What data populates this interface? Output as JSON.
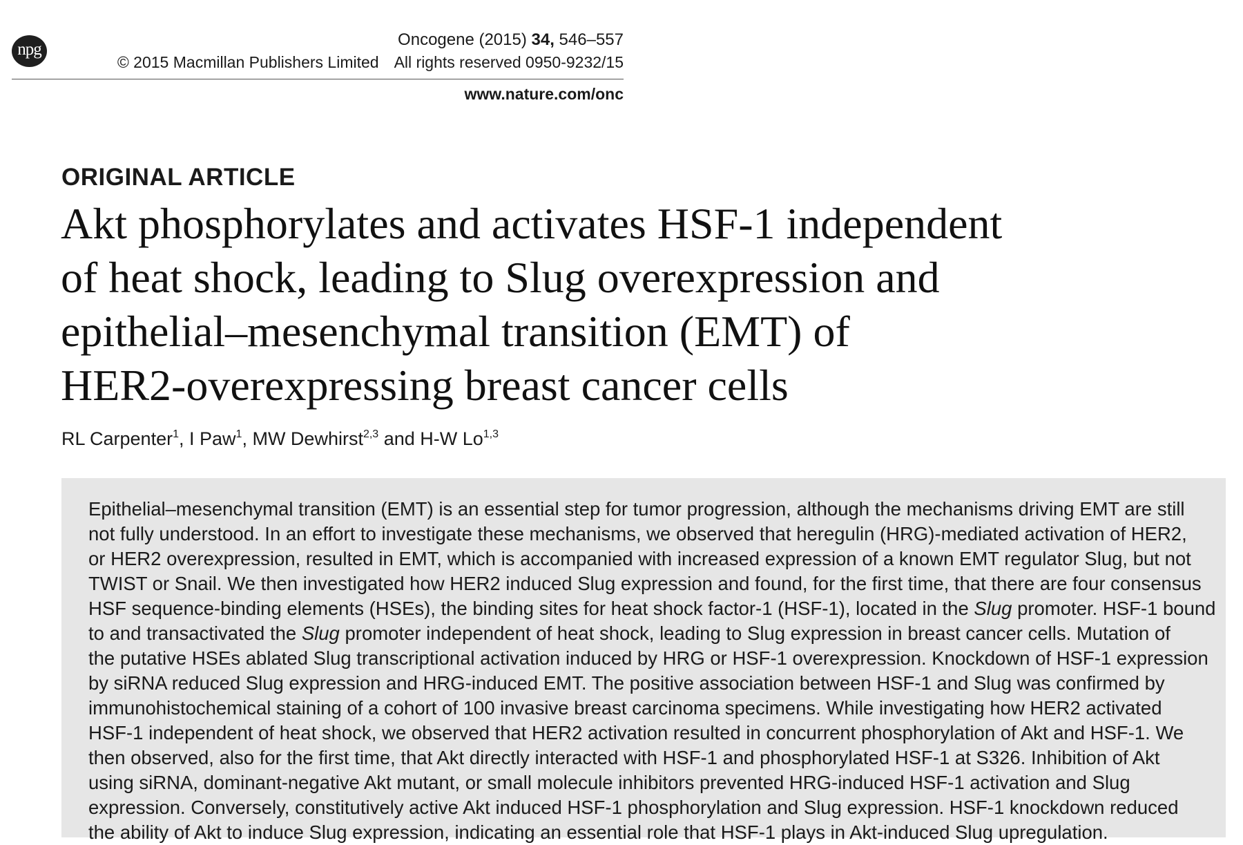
{
  "header": {
    "logo": "npg",
    "journal_name": "Oncogene (2015) ",
    "volume": "34,",
    "pages": " 546–557",
    "copyright": "© 2015 Macmillan Publishers Limited",
    "rights": "All rights reserved 0950-9232/15",
    "website": "www.nature.com/onc"
  },
  "article": {
    "type": "ORIGINAL ARTICLE",
    "title_lines": [
      "Akt phosphorylates and activates HSF-1 independent",
      "of heat shock, leading to Slug overexpression and",
      "epithelial–mesenchymal transition (EMT) of",
      "HER2-overexpressing breast cancer cells"
    ],
    "authors": [
      {
        "name": "RL Carpenter",
        "aff": "1",
        "sep": ", "
      },
      {
        "name": "I Paw",
        "aff": "1",
        "sep": ", "
      },
      {
        "name": "MW Dewhirst",
        "aff": "2,3",
        "sep": " and "
      },
      {
        "name": "H-W Lo",
        "aff": "1,3",
        "sep": ""
      }
    ]
  },
  "abstract": {
    "lines": [
      "Epithelial–mesenchymal transition (EMT) is an essential step for tumor progression, although the mechanisms driving EMT are still",
      "not fully understood. In an effort to investigate these mechanisms, we observed that heregulin (HRG)-mediated activation of HER2,",
      "or HER2 overexpression, resulted in EMT, which is accompanied with increased expression of a known EMT regulator Slug, but not",
      "TWIST or Snail. We then investigated how HER2 induced Slug expression and found, for the first time, that there are four consensus",
      "HSF sequence-binding elements (HSEs), the binding sites for heat shock factor-1 (HSF-1), located in the Slug promoter. HSF-1 bound",
      "to and transactivated the Slug promoter independent of heat shock, leading to Slug expression in breast cancer cells. Mutation of",
      "the putative HSEs ablated Slug transcriptional activation induced by HRG or HSF-1 overexpression. Knockdown of HSF-1 expression",
      "by siRNA reduced Slug expression and HRG-induced EMT. The positive association between HSF-1 and Slug was confirmed by",
      "immunohistochemical staining of a cohort of 100 invasive breast carcinoma specimens. While investigating how HER2 activated",
      "HSF-1 independent of heat shock, we observed that HER2 activation resulted in concurrent phosphorylation of Akt and HSF-1. We",
      "then observed, also for the first time, that Akt directly interacted with HSF-1 and phosphorylated HSF-1 at S326. Inhibition of Akt",
      "using siRNA, dominant-negative Akt mutant, or small molecule inhibitors prevented HRG-induced HSF-1 activation and Slug",
      "expression. Conversely, constitutively active Akt induced HSF-1 phosphorylation and Slug expression. HSF-1 knockdown reduced",
      "the ability of Akt to induce Slug expression, indicating an essential role that HSF-1 plays in Akt-induced Slug upregulation."
    ]
  }
}
